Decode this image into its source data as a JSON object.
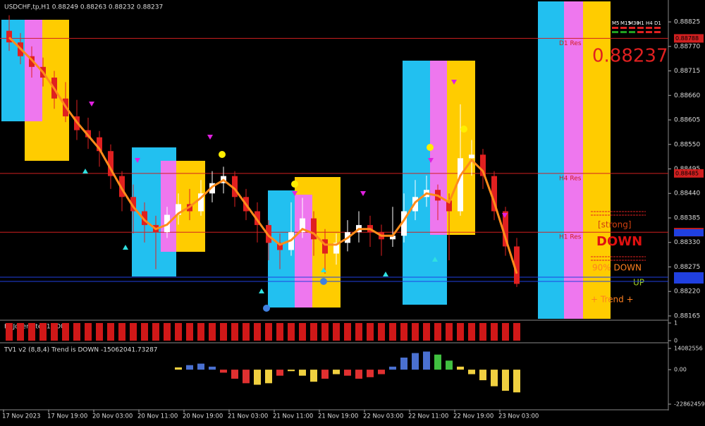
{
  "chart_data": [
    {
      "type": "candlestick",
      "title": "USDCHF,tp,H1  0.88249 0.88263 0.88232 0.88237",
      "ylim": [
        0.88157,
        0.88871
      ],
      "yticks": [
        0.88825,
        {
          "value": 0.8877,
          "label": "0.88770"
        },
        0.88715,
        {
          "value": 0.8866,
          "label": "0.88660"
        },
        0.88605,
        {
          "value": 0.8855,
          "label": "0.88550"
        },
        0.88495,
        {
          "value": 0.8844,
          "label": "0.88440"
        },
        0.88385,
        {
          "value": 0.8833,
          "label": "0.88330"
        },
        0.88275,
        {
          "value": 0.8822,
          "label": "0.88220"
        },
        0.88165
      ],
      "candles": [
        [
          0.88805,
          0.8884,
          0.8876,
          0.88779
        ],
        [
          0.88779,
          0.888,
          0.8873,
          0.88748
        ],
        [
          0.88748,
          0.8877,
          0.887,
          0.88724
        ],
        [
          0.88724,
          0.88745,
          0.8868,
          0.887
        ],
        [
          0.887,
          0.88715,
          0.8863,
          0.88653
        ],
        [
          0.88653,
          0.8869,
          0.886,
          0.88613
        ],
        [
          0.88613,
          0.8865,
          0.8856,
          0.88582
        ],
        [
          0.88582,
          0.8861,
          0.8854,
          0.88566
        ],
        [
          0.88566,
          0.8858,
          0.885,
          0.88535
        ],
        [
          0.88535,
          0.8855,
          0.8845,
          0.88479
        ],
        [
          0.88479,
          0.8849,
          0.884,
          0.88432
        ],
        [
          0.88432,
          0.8846,
          0.8835,
          0.884
        ],
        [
          0.884,
          0.8842,
          0.8833,
          0.88369
        ],
        [
          0.88369,
          0.8839,
          0.8827,
          0.88353
        ],
        [
          0.88353,
          0.8841,
          0.8834,
          0.88392
        ],
        [
          0.88392,
          0.8844,
          0.8837,
          0.88416
        ],
        [
          0.88416,
          0.8845,
          0.8838,
          0.884
        ],
        [
          0.884,
          0.8847,
          0.8839,
          0.8844
        ],
        [
          0.8844,
          0.8849,
          0.8842,
          0.88463
        ],
        [
          0.88463,
          0.885,
          0.8844,
          0.88479
        ],
        [
          0.88479,
          0.8849,
          0.8841,
          0.88432
        ],
        [
          0.88432,
          0.8845,
          0.8838,
          0.884
        ],
        [
          0.884,
          0.8842,
          0.8833,
          0.88369
        ],
        [
          0.88369,
          0.8838,
          0.8829,
          0.88329
        ],
        [
          0.88329,
          0.8835,
          0.8827,
          0.88313
        ],
        [
          0.88313,
          0.8842,
          0.883,
          0.88353
        ],
        [
          0.88353,
          0.8843,
          0.8834,
          0.88384
        ],
        [
          0.88384,
          0.884,
          0.883,
          0.88337
        ],
        [
          0.88337,
          0.8836,
          0.8826,
          0.88305
        ],
        [
          0.88305,
          0.8835,
          0.8828,
          0.88329
        ],
        [
          0.88329,
          0.8838,
          0.8831,
          0.88353
        ],
        [
          0.88353,
          0.884,
          0.8833,
          0.88369
        ],
        [
          0.88369,
          0.8839,
          0.8832,
          0.88353
        ],
        [
          0.88353,
          0.8837,
          0.883,
          0.88337
        ],
        [
          0.88337,
          0.8841,
          0.8832,
          0.88345
        ],
        [
          0.88345,
          0.8844,
          0.8833,
          0.884
        ],
        [
          0.884,
          0.8847,
          0.8838,
          0.88432
        ],
        [
          0.88432,
          0.8848,
          0.8841,
          0.88448
        ],
        [
          0.88448,
          0.8846,
          0.8838,
          0.88424
        ],
        [
          0.88424,
          0.8844,
          0.8829,
          0.884
        ],
        [
          0.884,
          0.8864,
          0.8839,
          0.88519
        ],
        [
          0.88519,
          0.8856,
          0.8848,
          0.88527
        ],
        [
          0.88527,
          0.8854,
          0.8845,
          0.88479
        ],
        [
          0.88479,
          0.8849,
          0.8838,
          0.884
        ],
        [
          0.884,
          0.8841,
          0.883,
          0.88321
        ],
        [
          0.88321,
          0.8834,
          0.8823,
          0.88237
        ]
      ],
      "up_color": "#ffffff",
      "down_color": "#e02020",
      "ma": [
        0.8879,
        0.88765,
        0.8874,
        0.88712,
        0.88675,
        0.88635,
        0.886,
        0.8857,
        0.8854,
        0.88495,
        0.8845,
        0.8841,
        0.8838,
        0.8836,
        0.8837,
        0.88395,
        0.8841,
        0.8843,
        0.88455,
        0.8847,
        0.8845,
        0.88415,
        0.8838,
        0.88345,
        0.88325,
        0.88335,
        0.8836,
        0.8835,
        0.88325,
        0.88325,
        0.8834,
        0.8836,
        0.8836,
        0.88345,
        0.88345,
        0.8838,
        0.8842,
        0.8844,
        0.88435,
        0.8842,
        0.8848,
        0.88515,
        0.8849,
        0.8842,
        0.8834,
        0.8826
      ],
      "ma_color": "#ff8c1a",
      "levels": [
        {
          "name": "D1 Res",
          "value": 0.88788
        },
        {
          "name": "H4 Res",
          "value": 0.88485
        },
        {
          "name": "H1 Res",
          "value": 0.88353
        }
      ],
      "level_color": "#d02020"
    },
    {
      "type": "bar",
      "title": "H4JokerFilter 1.0000",
      "ylim": [
        0,
        1
      ],
      "yticks": [
        1,
        0
      ],
      "color": "#d01818",
      "values": [
        1,
        1,
        1,
        1,
        1,
        1,
        1,
        1,
        1,
        1,
        1,
        1,
        1,
        1,
        1,
        1,
        1,
        1,
        1,
        1,
        1,
        1,
        1,
        1,
        1,
        1,
        1,
        1,
        1,
        1,
        1,
        1,
        1,
        1,
        1,
        1,
        1,
        1,
        1,
        1,
        1,
        1,
        1,
        1,
        1,
        1
      ]
    },
    {
      "type": "bar",
      "title": "TV1 v2 (8,8,4) Trend is DOWN -15062041.73287",
      "ylim": [
        -22862459,
        14082556
      ],
      "yticks": [
        14082556,
        {
          "value": 0,
          "label": "0.00"
        },
        -22862459
      ],
      "values": [
        null,
        null,
        null,
        null,
        null,
        null,
        null,
        null,
        null,
        null,
        null,
        null,
        null,
        null,
        null,
        1500000,
        3000000,
        4000000,
        2000000,
        -2000000,
        -6000000,
        -9000000,
        -10000000,
        -9000000,
        -4000000,
        -1000000,
        -4000000,
        -8000000,
        -6000000,
        -3000000,
        -4000000,
        -6000000,
        -5000000,
        -3000000,
        2000000,
        8000000,
        11000000,
        12000000,
        10000000,
        6000000,
        2000000,
        -3000000,
        -7000000,
        -11000000,
        -14000000,
        -15062041.73287
      ],
      "colors": [
        null,
        null,
        null,
        null,
        null,
        null,
        null,
        null,
        null,
        null,
        null,
        null,
        null,
        null,
        null,
        "#f0d040",
        "#4a70d0",
        "#4a70d0",
        "#4a70d0",
        "#e03030",
        "#e03030",
        "#e03030",
        "#f0d040",
        "#f0d040",
        "#e03030",
        "#f0d040",
        "#f0d040",
        "#f0d040",
        "#e03030",
        "#f0d040",
        "#e03030",
        "#e03030",
        "#e03030",
        "#e03030",
        "#4a70d0",
        "#4a70d0",
        "#4a70d0",
        "#4a70d0",
        "#40c040",
        "#40c040",
        "#f0d040",
        "#f0d040",
        "#f0d040",
        "#f0d040",
        "#f0d040",
        "#f0d040"
      ]
    }
  ],
  "time_axis": [
    "17 Nov 2023",
    "17 Nov 19:00",
    "20 Nov 03:00",
    "20 Nov 11:00",
    "20 Nov 19:00",
    "21 Nov 03:00",
    "21 Nov 11:00",
    "21 Nov 19:00",
    "22 Nov 03:00",
    "22 Nov 11:00",
    "22 Nov 19:00",
    "23 Nov 03:00"
  ],
  "info_panel": {
    "price": "0.88237",
    "timeframes": [
      "M5",
      "M15",
      "M30",
      "H1",
      "H4",
      "D1"
    ],
    "strength": "[strong]",
    "direction": "DOWN",
    "percent": "90% DOWN",
    "signal": "UP",
    "trend": "+   Trend   +"
  }
}
